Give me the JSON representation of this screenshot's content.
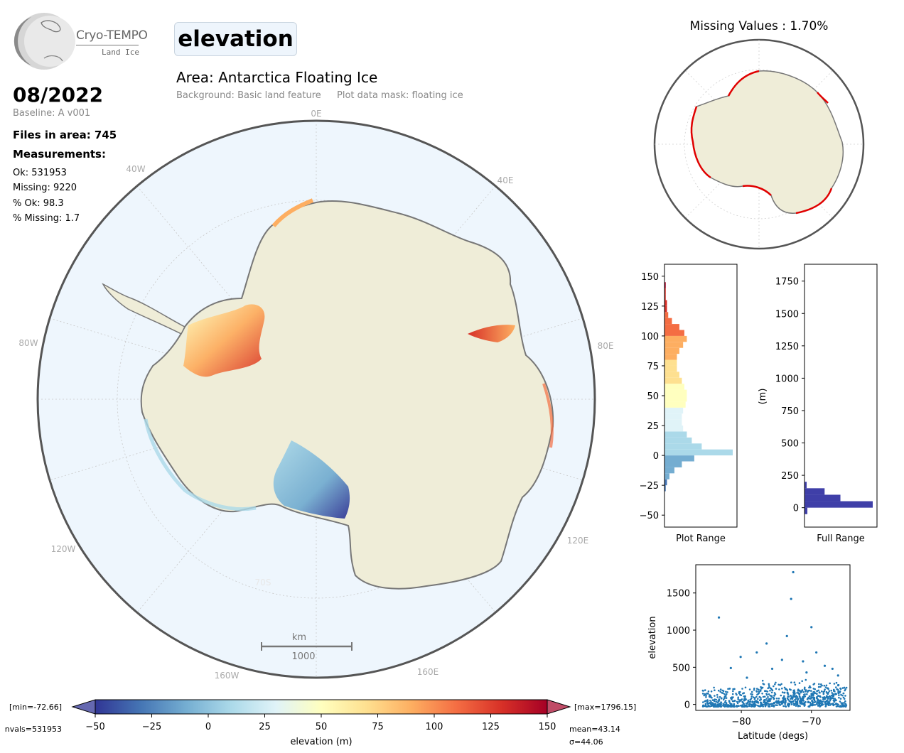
{
  "logo": {
    "name": "Cryo-TEMPO",
    "sub": "Land Ice"
  },
  "parameter": "elevation",
  "area_title": "Area: Antarctica Floating Ice",
  "background_note": "Background: Basic land feature",
  "mask_note": "Plot data mask: floating ice",
  "date": "08/2022",
  "baseline": "Baseline: A v001",
  "files_in_area": "Files in area: 745",
  "measurements_heading": "Measurements:",
  "stats": {
    "ok": "Ok: 531953",
    "missing": "Missing: 9220",
    "pct_ok": "% Ok: 98.3",
    "pct_missing": "% Missing: 1.7"
  },
  "map": {
    "lon_labels": [
      "0E",
      "40E",
      "80E",
      "120E",
      "160E",
      "160W",
      "120W",
      "80W",
      "40W"
    ],
    "lat_label": "70S",
    "scale_unit": "km",
    "scale_value": "1000",
    "colors": {
      "ocean": "#eef6fd",
      "land": "#efedd8",
      "coast": "#777777"
    }
  },
  "missing_map_title": "Missing Values : 1.70%",
  "colorbar": {
    "label": "elevation (m)",
    "ticks": [
      "−50",
      "−25",
      "0",
      "25",
      "50",
      "75",
      "100",
      "125",
      "150"
    ],
    "min_label": "[min=-72.66]",
    "max_label": "[max=1796.15]",
    "nvals": "nvals=531953",
    "mean": "mean=43.14",
    "sigma": "σ=44.06",
    "cmap": [
      "#313695",
      "#4575b4",
      "#74add1",
      "#abd9e9",
      "#e0f3f8",
      "#ffffbf",
      "#fee090",
      "#fdae61",
      "#f46d43",
      "#d73027",
      "#a50026"
    ]
  },
  "chart_data": [
    {
      "type": "bar",
      "orientation": "horizontal",
      "xlabel": "Plot Range",
      "ylabel": "",
      "ylim": [
        -60,
        160
      ],
      "yticks": [
        "150",
        "125",
        "100",
        "75",
        "50",
        "25",
        "0",
        "−25",
        "−50"
      ],
      "bins": [
        -30,
        -25,
        -20,
        -15,
        -10,
        -5,
        0,
        5,
        10,
        15,
        20,
        25,
        30,
        35,
        40,
        45,
        50,
        55,
        60,
        65,
        70,
        75,
        80,
        85,
        90,
        95,
        100,
        105,
        110,
        115,
        120,
        125,
        130,
        135,
        140
      ],
      "counts": [
        1,
        2,
        4,
        8,
        14,
        24,
        55,
        30,
        22,
        18,
        15,
        14,
        14,
        15,
        17,
        18,
        18,
        16,
        14,
        12,
        10,
        10,
        10,
        12,
        15,
        18,
        16,
        12,
        6,
        3,
        2,
        2,
        1,
        1,
        1
      ]
    },
    {
      "type": "bar",
      "orientation": "horizontal",
      "xlabel": "Full Range",
      "ylabel": "(m)",
      "ylim": [
        -150,
        1880
      ],
      "yticks": [
        "1750",
        "1500",
        "1250",
        "1000",
        "750",
        "500",
        "250",
        "0"
      ],
      "bins": [
        -50,
        0,
        50,
        100,
        150
      ],
      "counts": [
        4,
        95,
        50,
        28,
        3
      ]
    },
    {
      "type": "scatter",
      "xlabel": "Latitude (degs)",
      "ylabel": "elevation",
      "xlim": [
        -86.5,
        -64.5
      ],
      "ylim": [
        -80,
        1880
      ],
      "xticks": [
        "−80",
        "−70"
      ],
      "yticks": [
        "1500",
        "1000",
        "500",
        "0"
      ],
      "color": "#1f77b4",
      "outliers": [
        [
          -83.2,
          1170
        ],
        [
          -81.5,
          490
        ],
        [
          -80.1,
          640
        ],
        [
          -79.2,
          360
        ],
        [
          -77.8,
          700
        ],
        [
          -76.4,
          820
        ],
        [
          -75.6,
          480
        ],
        [
          -74.2,
          600
        ],
        [
          -73.5,
          920
        ],
        [
          -72.9,
          1420
        ],
        [
          -72.6,
          1780
        ],
        [
          -71.2,
          580
        ],
        [
          -70.7,
          430
        ],
        [
          -70.0,
          1040
        ],
        [
          -69.3,
          700
        ],
        [
          -68.1,
          520
        ],
        [
          -67.0,
          480
        ],
        [
          -66.2,
          390
        ]
      ]
    }
  ]
}
